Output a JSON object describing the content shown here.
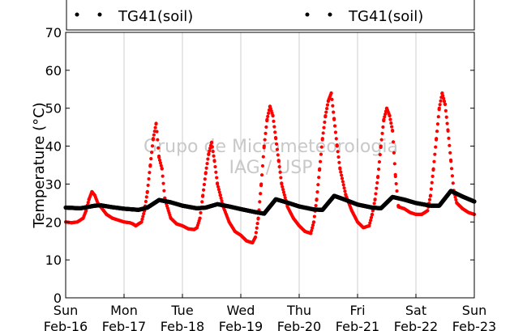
{
  "chart_data": {
    "type": "scatter",
    "ylabel": "Temperature (°C)",
    "ylim": [
      0,
      70
    ],
    "y_ticks": [
      "0",
      "10",
      "20",
      "30",
      "40",
      "50",
      "60",
      "70"
    ],
    "xlim": [
      "2014-02-16",
      "2014-02-23"
    ],
    "x_ticks": [
      {
        "day": "Sun",
        "date": "Feb-16"
      },
      {
        "day": "Mon",
        "date": "Feb-17"
      },
      {
        "day": "Tue",
        "date": "Feb-18"
      },
      {
        "day": "Wed",
        "date": "Feb-19"
      },
      {
        "day": "Thu",
        "date": "Feb-20"
      },
      {
        "day": "Fri",
        "date": "Feb-21"
      },
      {
        "day": "Sat",
        "date": "Feb-22"
      },
      {
        "day": "Sun",
        "date": "Feb-23"
      }
    ],
    "grid": "vertical",
    "watermark": [
      "Grupo de Micrometeorologia",
      "IAG / USP"
    ],
    "legend": {
      "placement": "top",
      "entries": [
        "TG41(soil)",
        "TG41(soil)"
      ],
      "colors": [
        "#000000",
        "#000000"
      ]
    },
    "series": [
      {
        "color": "#ff0000",
        "x_days": [
          0,
          0.1,
          0.2,
          0.3,
          0.35,
          0.4,
          0.45,
          0.5,
          0.55,
          0.6,
          0.65,
          0.7,
          0.8,
          0.9,
          1,
          1.1,
          1.15,
          1.2,
          1.3,
          1.35,
          1.4,
          1.45,
          1.5,
          1.55,
          1.6,
          1.65,
          1.7,
          1.8,
          1.9,
          2,
          2.1,
          2.2,
          2.25,
          2.3,
          2.35,
          2.4,
          2.45,
          2.5,
          2.55,
          2.6,
          2.65,
          2.7,
          2.8,
          2.9,
          3,
          3.1,
          3.2,
          3.25,
          3.3,
          3.35,
          3.4,
          3.45,
          3.5,
          3.55,
          3.6,
          3.65,
          3.7,
          3.8,
          3.9,
          4,
          4.1,
          4.2,
          4.25,
          4.3,
          4.35,
          4.4,
          4.45,
          4.5,
          4.55,
          4.6,
          4.65,
          4.7,
          4.8,
          4.9,
          5,
          5.1,
          5.2,
          5.25,
          5.3,
          5.35,
          5.4,
          5.45,
          5.5,
          5.55,
          5.6,
          5.65,
          5.7,
          5.8,
          5.9,
          6,
          6.1,
          6.2,
          6.25,
          6.3,
          6.35,
          6.4,
          6.45,
          6.5,
          6.55,
          6.6,
          6.65,
          6.7,
          6.8,
          6.9,
          7
        ],
        "values": [
          20,
          19.8,
          20,
          21,
          23,
          26,
          28,
          27,
          25,
          24,
          23,
          22,
          21,
          20.5,
          20,
          19.8,
          19.5,
          19,
          20,
          23,
          28,
          35,
          42,
          46,
          37,
          34,
          26,
          21,
          19.5,
          19,
          18.2,
          18,
          18.5,
          21,
          27,
          33,
          38,
          41,
          36,
          30,
          27,
          24,
          20,
          17.5,
          16.5,
          15,
          14.5,
          16,
          21,
          30,
          40,
          47,
          50.5,
          48,
          42,
          36,
          30,
          24,
          21,
          19,
          17.5,
          17,
          20,
          26,
          34,
          42,
          48,
          52,
          54,
          47,
          40,
          34,
          27,
          23,
          20,
          18.5,
          19,
          22,
          26,
          32,
          40,
          47,
          50,
          48,
          44,
          32,
          24,
          23.5,
          22.5,
          22,
          22,
          23,
          27,
          34,
          42,
          50,
          54,
          51,
          44,
          36,
          28,
          25,
          23.5,
          22.5,
          22
        ]
      },
      {
        "color": "#000000",
        "x_days": [
          0,
          0.25,
          0.5,
          0.6,
          0.8,
          1,
          1.25,
          1.4,
          1.6,
          1.8,
          2,
          2.25,
          2.4,
          2.6,
          2.8,
          3,
          3.25,
          3.4,
          3.6,
          3.8,
          4,
          4.25,
          4.4,
          4.6,
          4.8,
          5,
          5.25,
          5.4,
          5.6,
          5.8,
          6,
          6.25,
          6.4,
          6.6,
          6.8,
          7
        ],
        "values": [
          23.8,
          23.6,
          24.3,
          24.4,
          23.9,
          23.5,
          23.2,
          23.8,
          25.8,
          25.2,
          24.3,
          23.6,
          23.8,
          24.7,
          24.1,
          23.4,
          22.6,
          22.2,
          26.0,
          25.1,
          24.1,
          23.3,
          23.2,
          26.9,
          25.8,
          24.6,
          23.8,
          23.6,
          26.6,
          25.9,
          25.0,
          24.3,
          24.3,
          28.2,
          26.7,
          25.4
        ]
      }
    ]
  }
}
